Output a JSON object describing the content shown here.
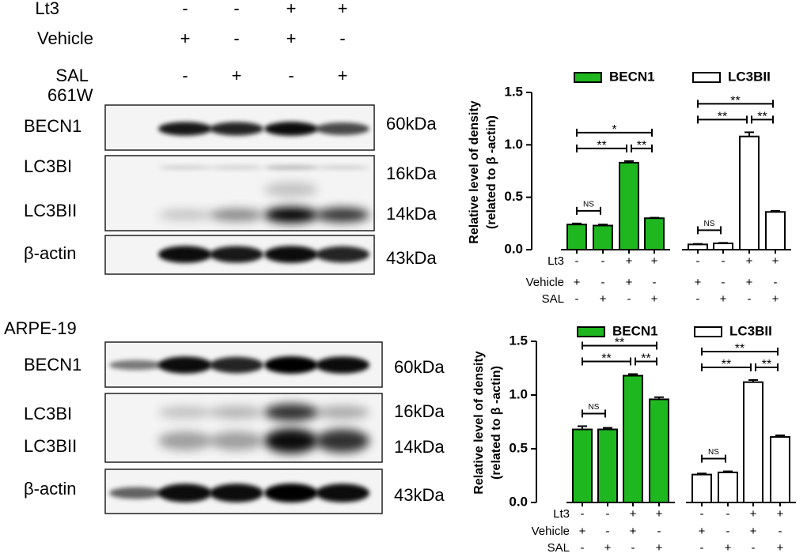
{
  "blots": {
    "conditions": [
      {
        "name": "Lt3",
        "signs": [
          "-",
          "-",
          "+",
          "+"
        ]
      },
      {
        "name": "Vehicle",
        "signs": [
          "+",
          "-",
          "+",
          "-"
        ]
      },
      {
        "name": "SAL",
        "signs": [
          "-",
          "+",
          "-",
          "+"
        ]
      }
    ],
    "panels": [
      {
        "cell_line": "661W",
        "rows": [
          {
            "labels": [
              "BECN1"
            ],
            "sizes": [
              "60kDa"
            ]
          },
          {
            "labels": [
              "LC3BI",
              "LC3BII"
            ],
            "sizes": [
              "16kDa",
              "14kDa"
            ]
          },
          {
            "labels": [
              "β-actin"
            ],
            "sizes": [
              "43kDa"
            ]
          }
        ]
      },
      {
        "cell_line": "ARPE-19",
        "rows": [
          {
            "labels": [
              "BECN1"
            ],
            "sizes": [
              "60kDa"
            ]
          },
          {
            "labels": [
              "LC3BI",
              "LC3BII"
            ],
            "sizes": [
              "16kDa",
              "14kDa"
            ]
          },
          {
            "labels": [
              "β-actin"
            ],
            "sizes": [
              "43kDa"
            ]
          }
        ]
      }
    ]
  },
  "chart_data": [
    {
      "type": "bar",
      "ylabel": [
        "Relative level of density",
        "(related to β -actin)"
      ],
      "ylim": [
        0,
        1.5
      ],
      "yticks": [
        {
          "value": 0,
          "label": "0.0"
        },
        0.5,
        {
          "value": 1,
          "label": "1.0"
        },
        1.5
      ],
      "conditions": [
        {
          "name": "Lt3",
          "signs": [
            "-",
            "-",
            "+",
            "+"
          ]
        },
        {
          "name": "Vehicle",
          "signs": [
            "+",
            "-",
            "+",
            "-"
          ]
        },
        {
          "name": "SAL",
          "signs": [
            "-",
            "+",
            "-",
            "+"
          ]
        }
      ],
      "edgecolor": "#000000",
      "series": [
        {
          "name": "BECN1",
          "color": "#1fb71f",
          "values": [
            0.24,
            0.23,
            0.83,
            0.3
          ],
          "errors": [
            0.01,
            0.01,
            0.015,
            0.005
          ],
          "annotations": [
            {
              "from": 0,
              "to": 1,
              "text": "NS"
            },
            {
              "from": 0,
              "to": 2,
              "text": "**"
            },
            {
              "from": 2,
              "to": 3,
              "text": "**"
            },
            {
              "from": 0,
              "to": 3,
              "text": "*"
            }
          ]
        },
        {
          "name": "LC3BII",
          "color": "#ffffff",
          "values": [
            0.05,
            0.06,
            1.08,
            0.36
          ],
          "errors": [
            0.005,
            0.005,
            0.04,
            0.01
          ],
          "annotations": [
            {
              "from": 0,
              "to": 1,
              "text": "NS"
            },
            {
              "from": 0,
              "to": 2,
              "text": "**"
            },
            {
              "from": 2,
              "to": 3,
              "text": "**"
            },
            {
              "from": 0,
              "to": 3,
              "text": "**"
            }
          ]
        }
      ]
    },
    {
      "type": "bar",
      "ylabel": [
        "Relative level of density",
        "(related to β -actin)"
      ],
      "ylim": [
        0,
        1.5
      ],
      "yticks": [
        {
          "value": 0,
          "label": "0.0"
        },
        0.5,
        {
          "value": 1,
          "label": "1.0"
        },
        1.5
      ],
      "conditions": [
        {
          "name": "Lt3",
          "signs": [
            "-",
            "-",
            "+",
            "+"
          ]
        },
        {
          "name": "Vehicle",
          "signs": [
            "+",
            "-",
            "+",
            "-"
          ]
        },
        {
          "name": "SAL",
          "signs": [
            "-",
            "+",
            "-",
            "+"
          ]
        }
      ],
      "edgecolor": "#000000",
      "series": [
        {
          "name": "BECN1",
          "color": "#1fb71f",
          "values": [
            0.68,
            0.68,
            1.18,
            0.96
          ],
          "errors": [
            0.03,
            0.015,
            0.015,
            0.02
          ],
          "annotations": [
            {
              "from": 0,
              "to": 1,
              "text": "NS"
            },
            {
              "from": 0,
              "to": 2,
              "text": "**"
            },
            {
              "from": 2,
              "to": 3,
              "text": "**"
            },
            {
              "from": 0,
              "to": 3,
              "text": "**"
            }
          ]
        },
        {
          "name": "LC3BII",
          "color": "#ffffff",
          "values": [
            0.26,
            0.28,
            1.12,
            0.61
          ],
          "errors": [
            0.01,
            0.01,
            0.02,
            0.015
          ],
          "annotations": [
            {
              "from": 0,
              "to": 1,
              "text": "NS"
            },
            {
              "from": 0,
              "to": 2,
              "text": "**"
            },
            {
              "from": 2,
              "to": 3,
              "text": "**"
            },
            {
              "from": 0,
              "to": 3,
              "text": "**"
            }
          ]
        }
      ]
    }
  ]
}
